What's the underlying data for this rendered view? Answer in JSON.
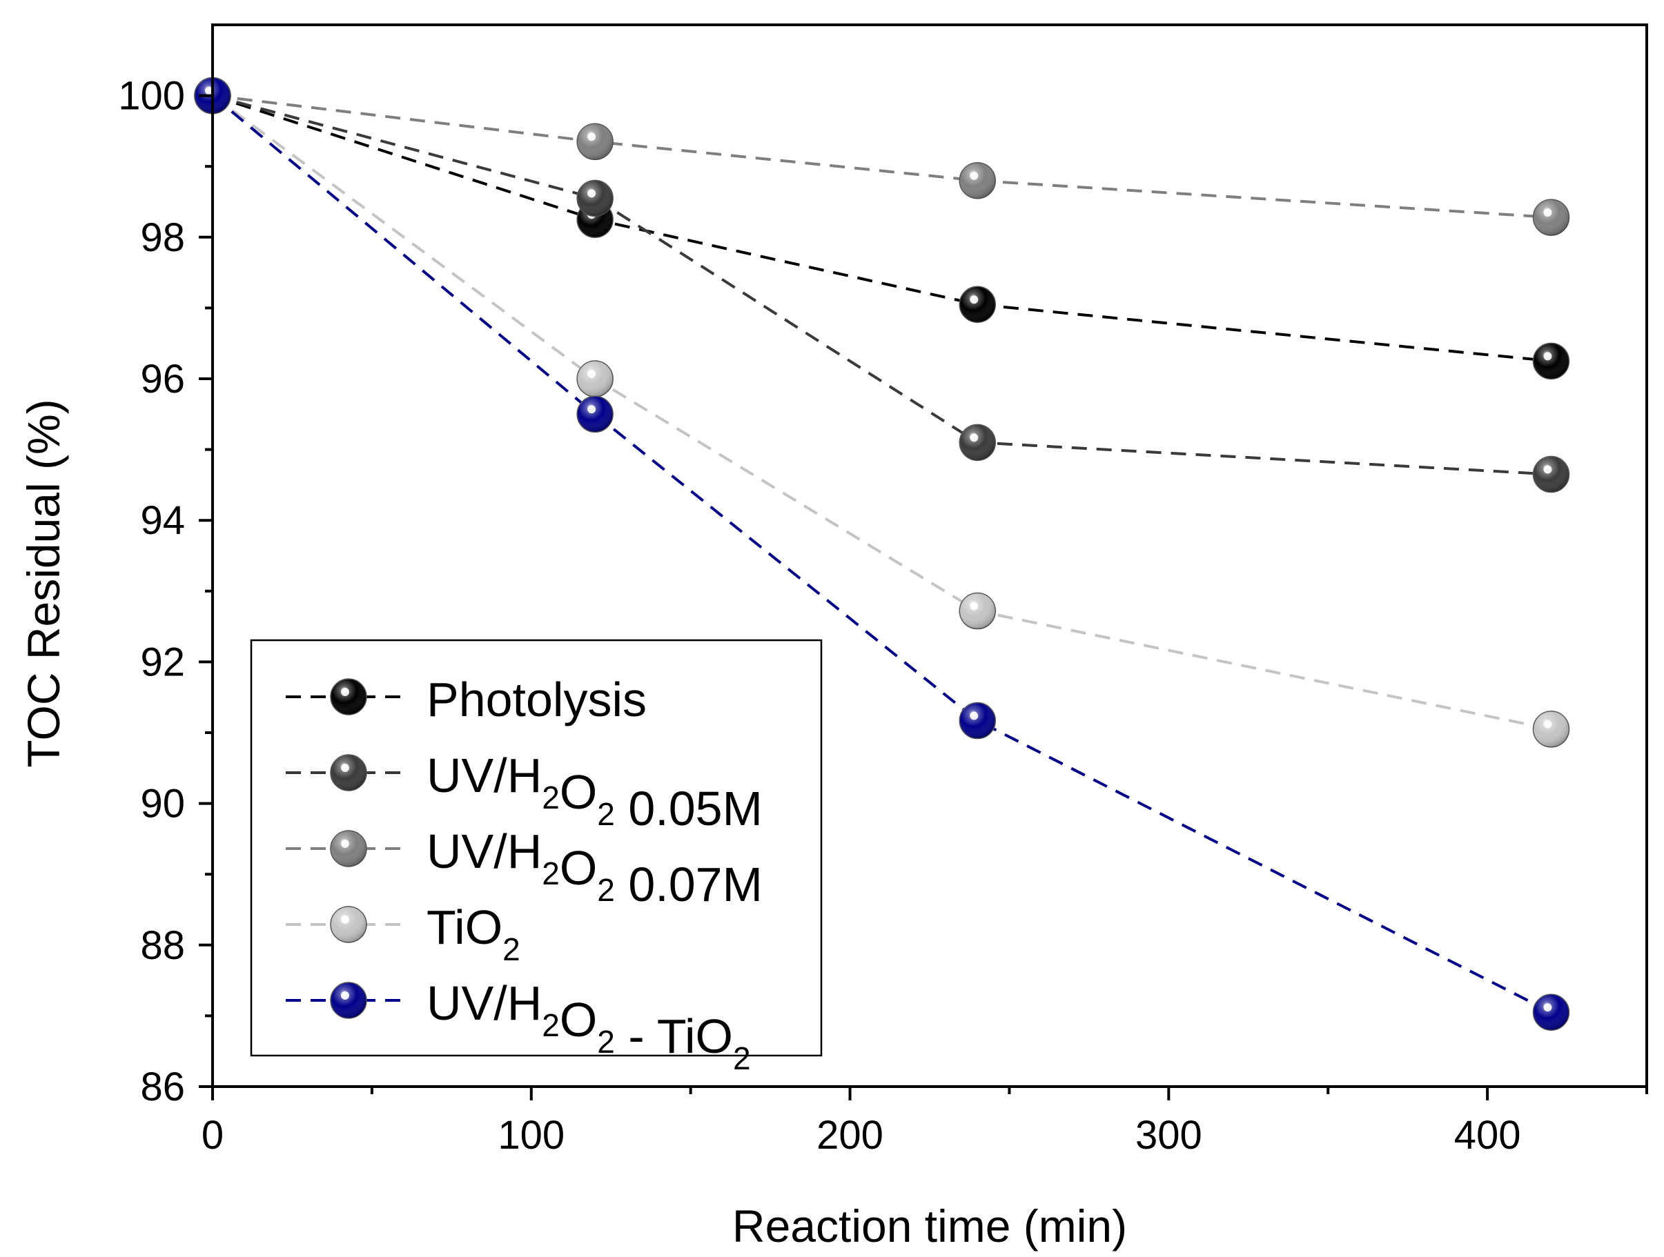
{
  "chart_data": {
    "type": "line",
    "title": "",
    "xlabel": "Reaction time (min)",
    "ylabel": "TOC Residual (%)",
    "xlim": [
      0,
      450
    ],
    "ylim": [
      86,
      101
    ],
    "x_ticks": [
      0,
      100,
      200,
      300,
      400
    ],
    "x_minor_ticks": [
      50,
      150,
      250,
      350,
      450
    ],
    "y_ticks": [
      86,
      88,
      90,
      92,
      94,
      96,
      98,
      100
    ],
    "y_minor_ticks": [
      87,
      89,
      91,
      93,
      95,
      97,
      99
    ],
    "x_tick_labels": [
      "0",
      "100",
      "200",
      "300",
      "400"
    ],
    "y_tick_labels": [
      "86",
      "88",
      "90",
      "92",
      "94",
      "96",
      "98",
      "100"
    ],
    "legend_position": "bottom-left",
    "series": [
      {
        "name": "Photolysis",
        "label_parts": [
          {
            "t": "Photolysis",
            "sub": ""
          }
        ],
        "color": "#000000",
        "x": [
          0,
          120,
          240,
          420
        ],
        "values": [
          100,
          98.25,
          97.05,
          96.25
        ]
      },
      {
        "name": "UV/H2O2 0.05M",
        "label_parts": [
          {
            "t": "UV/H",
            "sub": "2"
          },
          {
            "t": "O",
            "sub": "2"
          },
          {
            "t": " 0.05M",
            "sub": ""
          }
        ],
        "color": "#3a3a3a",
        "x": [
          0,
          120,
          240,
          420
        ],
        "values": [
          100,
          98.55,
          95.1,
          94.65
        ]
      },
      {
        "name": "UV/H2O2 0.07M",
        "label_parts": [
          {
            "t": "UV/H",
            "sub": "2"
          },
          {
            "t": "O",
            "sub": "2"
          },
          {
            "t": " 0.07M",
            "sub": ""
          }
        ],
        "color": "#7f7f7f",
        "x": [
          0,
          120,
          240,
          420
        ],
        "values": [
          100,
          99.35,
          98.8,
          98.28
        ]
      },
      {
        "name": "TiO2",
        "label_parts": [
          {
            "t": "TiO",
            "sub": "2"
          }
        ],
        "color": "#c4c4c4",
        "x": [
          0,
          120,
          240,
          420
        ],
        "values": [
          100,
          96.0,
          92.72,
          91.05
        ]
      },
      {
        "name": "UV/H2O2 - TiO2",
        "label_parts": [
          {
            "t": "UV/H",
            "sub": "2"
          },
          {
            "t": "O",
            "sub": "2"
          },
          {
            "t": " - TiO",
            "sub": "2"
          }
        ],
        "color": "#00008b",
        "x": [
          0,
          120,
          240,
          420
        ],
        "values": [
          100,
          95.5,
          91.17,
          87.05
        ]
      }
    ]
  }
}
